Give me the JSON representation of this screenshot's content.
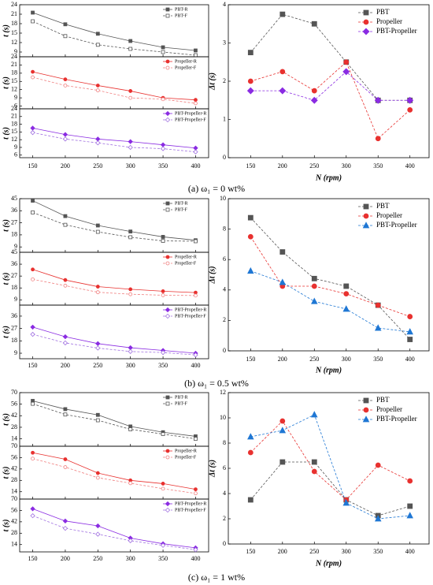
{
  "captions": [
    "(a) ω₁ = 0 wt%",
    "(b) ω₁ = 0.5 wt%",
    "(c) ω₁ = 1 wt%"
  ],
  "chart_data": [
    {
      "type": "line",
      "ylabel": "t (s)",
      "x": [
        150,
        200,
        250,
        300,
        350,
        400
      ],
      "xlim": [
        130,
        420
      ],
      "xticks": [
        150,
        200,
        250,
        300,
        350,
        400
      ],
      "ylim": [
        7.5,
        24
      ],
      "yticks": [
        9,
        12,
        15,
        18,
        21,
        24
      ],
      "series": [
        {
          "name": "PBT-R",
          "color": "#555555",
          "marker": "square",
          "filled": true,
          "dashed": false,
          "values": [
            21.5,
            17.8,
            14.8,
            12.5,
            10.5,
            9.5
          ]
        },
        {
          "name": "PBT-F",
          "color": "#555555",
          "marker": "square",
          "filled": false,
          "dashed": true,
          "values": [
            18.75,
            14.05,
            11.3,
            10,
            9,
            8
          ]
        }
      ]
    },
    {
      "type": "line",
      "ylabel": "t (s)",
      "x": [
        150,
        200,
        250,
        300,
        350,
        400
      ],
      "xlim": [
        130,
        420
      ],
      "xticks": [
        150,
        200,
        250,
        300,
        350,
        400
      ],
      "ylim": [
        5,
        24
      ],
      "yticks": [
        6,
        9,
        12,
        15,
        18,
        21,
        24
      ],
      "series": [
        {
          "name": "Propeller-R",
          "color": "#e8312f",
          "marker": "circle",
          "filled": true,
          "dashed": false,
          "values": [
            18.5,
            15.75,
            13.5,
            11.5,
            9,
            8.25
          ]
        },
        {
          "name": "Propeller-F",
          "color": "#f08080",
          "marker": "circle",
          "filled": false,
          "dashed": true,
          "values": [
            16.5,
            13.5,
            11.75,
            9,
            8.5,
            7
          ]
        }
      ]
    },
    {
      "type": "line",
      "ylabel": "t (s)",
      "x": [
        150,
        200,
        250,
        300,
        350,
        400
      ],
      "xlim": [
        130,
        420
      ],
      "xticks": [
        150,
        200,
        250,
        300,
        350,
        400
      ],
      "ylim": [
        5,
        24
      ],
      "yticks": [
        6,
        9,
        12,
        15,
        18,
        21,
        24
      ],
      "series": [
        {
          "name": "PBT-Propeller-R",
          "color": "#8a2be2",
          "marker": "diamond",
          "filled": true,
          "dashed": false,
          "values": [
            16.5,
            14,
            12.25,
            11.25,
            10,
            8.75
          ]
        },
        {
          "name": "PBT-Propeller-F",
          "color": "#a070e0",
          "marker": "diamond",
          "filled": false,
          "dashed": true,
          "values": [
            14.75,
            12.25,
            10.75,
            9,
            8.5,
            7.25
          ]
        }
      ]
    },
    {
      "type": "line",
      "ylabel": "Δt (s)",
      "xlabel": "N (rpm)",
      "x": [
        150,
        200,
        250,
        300,
        350,
        400
      ],
      "xlim": [
        115,
        430
      ],
      "xticks": [
        150,
        200,
        250,
        300,
        350,
        400
      ],
      "ylim": [
        0,
        4
      ],
      "yticks": [
        0,
        1,
        2,
        3,
        4
      ],
      "series": [
        {
          "name": "PBT",
          "color": "#555555",
          "marker": "square",
          "filled": true,
          "dashed": true,
          "values": [
            2.75,
            3.75,
            3.5,
            2.5,
            1.5,
            1.5
          ]
        },
        {
          "name": "Propeller",
          "color": "#e8312f",
          "marker": "circle",
          "filled": true,
          "dashed": true,
          "values": [
            2,
            2.25,
            1.75,
            2.5,
            0.5,
            1.25
          ]
        },
        {
          "name": "PBT-Propeller",
          "color": "#8a2be2",
          "marker": "diamond",
          "filled": true,
          "dashed": true,
          "values": [
            1.75,
            1.75,
            1.5,
            2.25,
            1.5,
            1.5
          ]
        }
      ]
    },
    {
      "type": "line",
      "ylabel": "t (s)",
      "x": [
        150,
        200,
        250,
        300,
        350,
        400
      ],
      "xlim": [
        130,
        420
      ],
      "xticks": [
        150,
        200,
        250,
        300,
        350,
        400
      ],
      "ylim": [
        5,
        45
      ],
      "yticks": [
        9,
        18,
        27,
        36,
        45
      ],
      "series": [
        {
          "name": "PBT-R",
          "color": "#555555",
          "marker": "square",
          "filled": true,
          "dashed": false,
          "values": [
            43.5,
            32,
            25,
            20.5,
            16.5,
            14
          ]
        },
        {
          "name": "PBT-F",
          "color": "#555555",
          "marker": "square",
          "filled": false,
          "dashed": true,
          "values": [
            34.75,
            25.5,
            20.25,
            16.25,
            13.5,
            13.25
          ]
        }
      ]
    },
    {
      "type": "line",
      "ylabel": "t (s)",
      "x": [
        150,
        200,
        250,
        300,
        350,
        400
      ],
      "xlim": [
        130,
        420
      ],
      "xticks": [
        150,
        200,
        250,
        300,
        350,
        400
      ],
      "ylim": [
        5,
        45
      ],
      "yticks": [
        9,
        18,
        27,
        36,
        45
      ],
      "series": [
        {
          "name": "Propeller-R",
          "color": "#e8312f",
          "marker": "circle",
          "filled": true,
          "dashed": false,
          "values": [
            32,
            24,
            19,
            17,
            15.5,
            14.5
          ]
        },
        {
          "name": "Propeller-F",
          "color": "#f08080",
          "marker": "circle",
          "filled": false,
          "dashed": true,
          "values": [
            24.5,
            19.75,
            14.75,
            13.25,
            12.5,
            12.25
          ]
        }
      ]
    },
    {
      "type": "line",
      "ylabel": "t (s)",
      "x": [
        150,
        200,
        250,
        300,
        350,
        400
      ],
      "xlim": [
        130,
        420
      ],
      "xticks": [
        150,
        200,
        250,
        300,
        350,
        400
      ],
      "ylim": [
        5,
        44
      ],
      "yticks": [
        9,
        18,
        27,
        36
      ],
      "series": [
        {
          "name": "PBT-Propeller-R",
          "color": "#8a2be2",
          "marker": "diamond",
          "filled": true,
          "dashed": false,
          "values": [
            28,
            21,
            16,
            13,
            11,
            9
          ]
        },
        {
          "name": "PBT-Propeller-F",
          "color": "#a070e0",
          "marker": "diamond",
          "filled": false,
          "dashed": true,
          "values": [
            22.75,
            16.5,
            12.75,
            10.25,
            9.5,
            7.75
          ]
        }
      ]
    },
    {
      "type": "line",
      "ylabel": "Δt (s)",
      "xlabel": "N (rpm)",
      "x": [
        150,
        200,
        250,
        300,
        350,
        400
      ],
      "xlim": [
        115,
        430
      ],
      "xticks": [
        150,
        200,
        250,
        300,
        350,
        400
      ],
      "ylim": [
        0,
        10
      ],
      "yticks": [
        0,
        2,
        4,
        6,
        8,
        10
      ],
      "series": [
        {
          "name": "PBT",
          "color": "#555555",
          "marker": "square",
          "filled": true,
          "dashed": true,
          "values": [
            8.75,
            6.5,
            4.75,
            4.25,
            3,
            0.75
          ]
        },
        {
          "name": "Propeller",
          "color": "#e8312f",
          "marker": "circle",
          "filled": true,
          "dashed": true,
          "values": [
            7.5,
            4.25,
            4.25,
            3.75,
            3,
            2.25
          ]
        },
        {
          "name": "PBT-Propeller",
          "color": "#1f77d4",
          "marker": "triangle",
          "filled": true,
          "dashed": true,
          "values": [
            5.25,
            4.5,
            3.25,
            2.75,
            1.5,
            1.25
          ]
        }
      ]
    },
    {
      "type": "line",
      "ylabel": "t (s)",
      "x": [
        150,
        200,
        250,
        300,
        350,
        400
      ],
      "xlim": [
        130,
        420
      ],
      "xticks": [
        150,
        200,
        250,
        300,
        350,
        400
      ],
      "ylim": [
        5,
        70
      ],
      "yticks": [
        14,
        28,
        42,
        56,
        70
      ],
      "series": [
        {
          "name": "PBT-R",
          "color": "#555555",
          "marker": "square",
          "filled": true,
          "dashed": false,
          "values": [
            60,
            50,
            43,
            29,
            22,
            17
          ]
        },
        {
          "name": "PBT-F",
          "color": "#555555",
          "marker": "square",
          "filled": false,
          "dashed": true,
          "values": [
            56.5,
            43.5,
            36.5,
            25.5,
            19.75,
            14
          ]
        }
      ]
    },
    {
      "type": "line",
      "ylabel": "t (s)",
      "x": [
        150,
        200,
        250,
        300,
        350,
        400
      ],
      "xlim": [
        130,
        420
      ],
      "xticks": [
        150,
        200,
        250,
        300,
        350,
        400
      ],
      "ylim": [
        5,
        70
      ],
      "yticks": [
        14,
        28,
        42,
        56,
        70
      ],
      "series": [
        {
          "name": "Propeller-R",
          "color": "#e8312f",
          "marker": "circle",
          "filled": true,
          "dashed": false,
          "values": [
            62,
            54,
            37,
            28,
            24,
            17
          ]
        },
        {
          "name": "Propeller-F",
          "color": "#f08080",
          "marker": "circle",
          "filled": false,
          "dashed": true,
          "values": [
            54.75,
            44.25,
            31.25,
            24.5,
            17.75,
            12
          ]
        }
      ]
    },
    {
      "type": "line",
      "ylabel": "t (s)",
      "x": [
        150,
        200,
        250,
        300,
        350,
        400
      ],
      "xlim": [
        130,
        420
      ],
      "xticks": [
        150,
        200,
        250,
        300,
        350,
        400
      ],
      "ylim": [
        5,
        70
      ],
      "yticks": [
        14,
        28,
        42,
        56,
        70
      ],
      "series": [
        {
          "name": "PBT-Propeller-R",
          "color": "#8a2be2",
          "marker": "diamond",
          "filled": true,
          "dashed": false,
          "values": [
            58,
            43,
            37,
            22,
            15,
            10
          ]
        },
        {
          "name": "PBT-Propeller-F",
          "color": "#a070e0",
          "marker": "diamond",
          "filled": false,
          "dashed": true,
          "values": [
            49.5,
            34,
            26.75,
            18.75,
            13,
            7.75
          ]
        }
      ]
    },
    {
      "type": "line",
      "ylabel": "Δt (s)",
      "xlabel": "N (rpm)",
      "x": [
        150,
        200,
        250,
        300,
        350,
        400
      ],
      "xlim": [
        115,
        430
      ],
      "xticks": [
        150,
        200,
        250,
        300,
        350,
        400
      ],
      "ylim": [
        0,
        12
      ],
      "yticks": [
        0,
        2,
        4,
        6,
        8,
        10,
        12
      ],
      "series": [
        {
          "name": "PBT",
          "color": "#555555",
          "marker": "square",
          "filled": true,
          "dashed": true,
          "values": [
            3.5,
            6.5,
            6.5,
            3.5,
            2.25,
            3
          ]
        },
        {
          "name": "Propeller",
          "color": "#e8312f",
          "marker": "circle",
          "filled": true,
          "dashed": true,
          "values": [
            7.25,
            9.75,
            5.75,
            3.5,
            6.25,
            5
          ]
        },
        {
          "name": "PBT-Propeller",
          "color": "#1f77d4",
          "marker": "triangle",
          "filled": true,
          "dashed": true,
          "values": [
            8.5,
            9,
            10.25,
            3.25,
            2,
            2.25
          ]
        }
      ]
    }
  ]
}
